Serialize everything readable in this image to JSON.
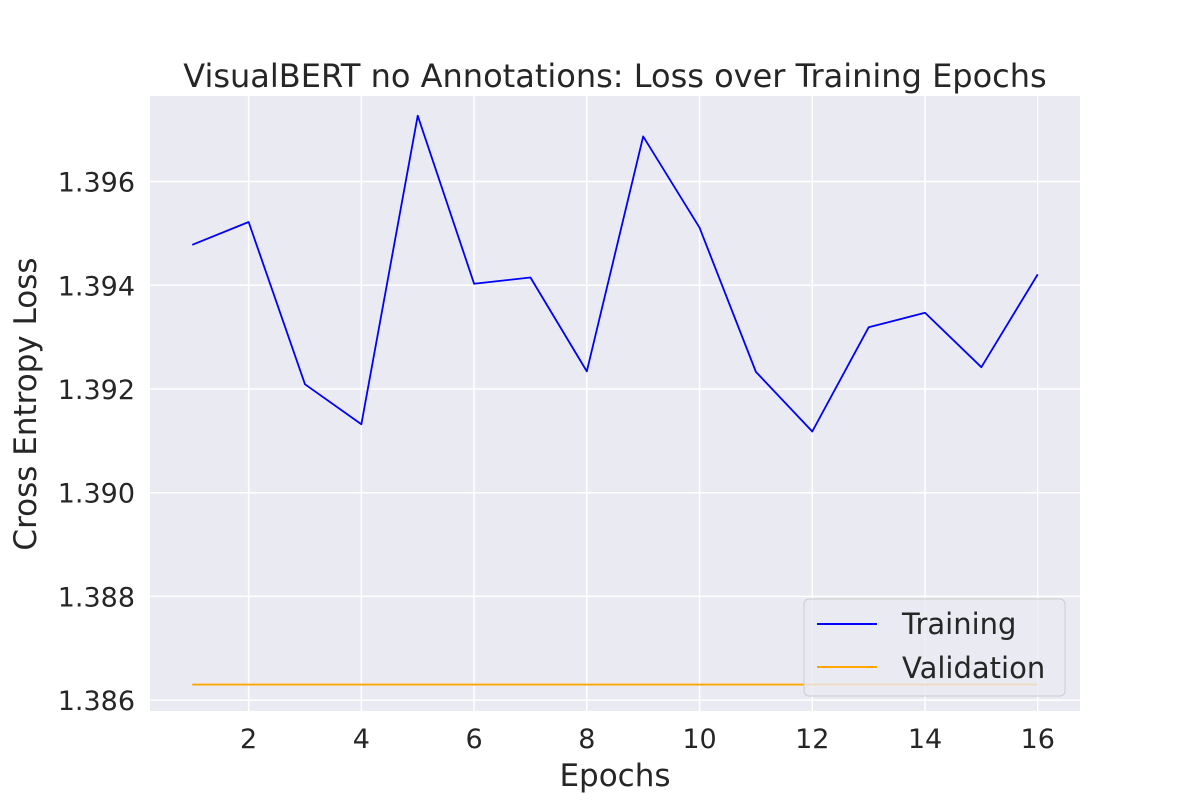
{
  "chart_data": {
    "type": "line",
    "title": "VisualBERT no Annotations: Loss over Training Epochs",
    "xlabel": "Epochs",
    "ylabel": "Cross Entropy Loss",
    "x": [
      1,
      2,
      3,
      4,
      5,
      6,
      7,
      8,
      9,
      10,
      11,
      12,
      13,
      14,
      15,
      16
    ],
    "xlim": [
      0.25,
      16.75
    ],
    "ylim": [
      1.38579,
      1.39765
    ],
    "xticks": [
      2,
      4,
      6,
      8,
      10,
      12,
      14,
      16
    ],
    "xtick_labels": [
      "2",
      "4",
      "6",
      "8",
      "10",
      "12",
      "14",
      "16"
    ],
    "yticks": [
      1.386,
      1.388,
      1.39,
      1.392,
      1.394,
      1.396
    ],
    "ytick_labels": [
      "1.386",
      "1.388",
      "1.390",
      "1.392",
      "1.394",
      "1.396"
    ],
    "grid": true,
    "legend_position": "lower-right",
    "series": [
      {
        "name": "Training",
        "color": "#0000ff",
        "values": [
          1.39478,
          1.39522,
          1.39209,
          1.39132,
          1.39727,
          1.39403,
          1.39415,
          1.39234,
          1.39687,
          1.39511,
          1.39233,
          1.39118,
          1.39319,
          1.39347,
          1.39242,
          1.39421
        ]
      },
      {
        "name": "Validation",
        "color": "#ffa500",
        "values": [
          1.3863,
          1.3863,
          1.3863,
          1.3863,
          1.3863,
          1.3863,
          1.3863,
          1.3863,
          1.3863,
          1.3863,
          1.3863,
          1.3863,
          1.3863,
          1.3863,
          1.3863,
          1.3863
        ]
      }
    ]
  }
}
